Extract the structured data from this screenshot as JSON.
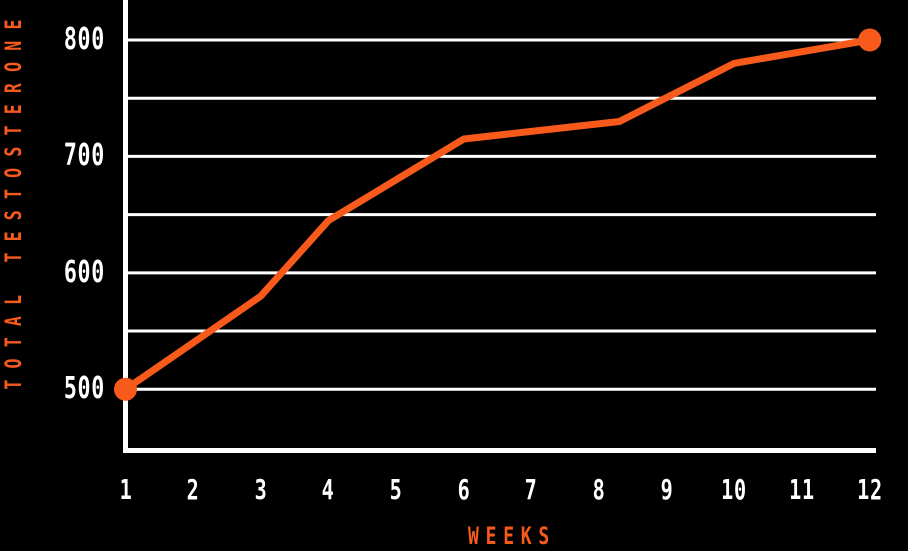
{
  "chart_data": {
    "type": "line",
    "xlabel": "WEEKS",
    "ylabel": "TOTAL TESTOSTERONE",
    "x_ticks": [
      "1",
      "2",
      "3",
      "4",
      "5",
      "6",
      "7",
      "8",
      "9",
      "10",
      "11",
      "12"
    ],
    "y_ticks": [
      {
        "label": "500",
        "value": 500
      },
      {
        "label": "600",
        "value": 600
      },
      {
        "label": "700",
        "value": 700
      },
      {
        "label": "800",
        "value": 800
      }
    ],
    "y_gridline_values": [
      500,
      550,
      600,
      650,
      700,
      750,
      800
    ],
    "xlim": [
      1,
      12
    ],
    "ylim": [
      448,
      834
    ],
    "grid": "horizontal-only",
    "legend": "none",
    "series": [
      {
        "name": "Total Testosterone",
        "marker": "endpoint-dots-only",
        "points": [
          {
            "week": 1,
            "value": 500
          },
          {
            "week": 3,
            "value": 580
          },
          {
            "week": 4,
            "value": 645
          },
          {
            "week": 6,
            "value": 715
          },
          {
            "week": 8.3,
            "value": 730
          },
          {
            "week": 10,
            "value": 780
          },
          {
            "week": 12,
            "value": 800
          }
        ]
      }
    ],
    "colors": {
      "background": "#000000",
      "line": "#f85a1c",
      "marker": "#f85a1c",
      "axis": "#ffffff",
      "gridline": "#ffffff",
      "tick_text": "#ffffff",
      "axis_title_text": "#f85a1c"
    }
  }
}
